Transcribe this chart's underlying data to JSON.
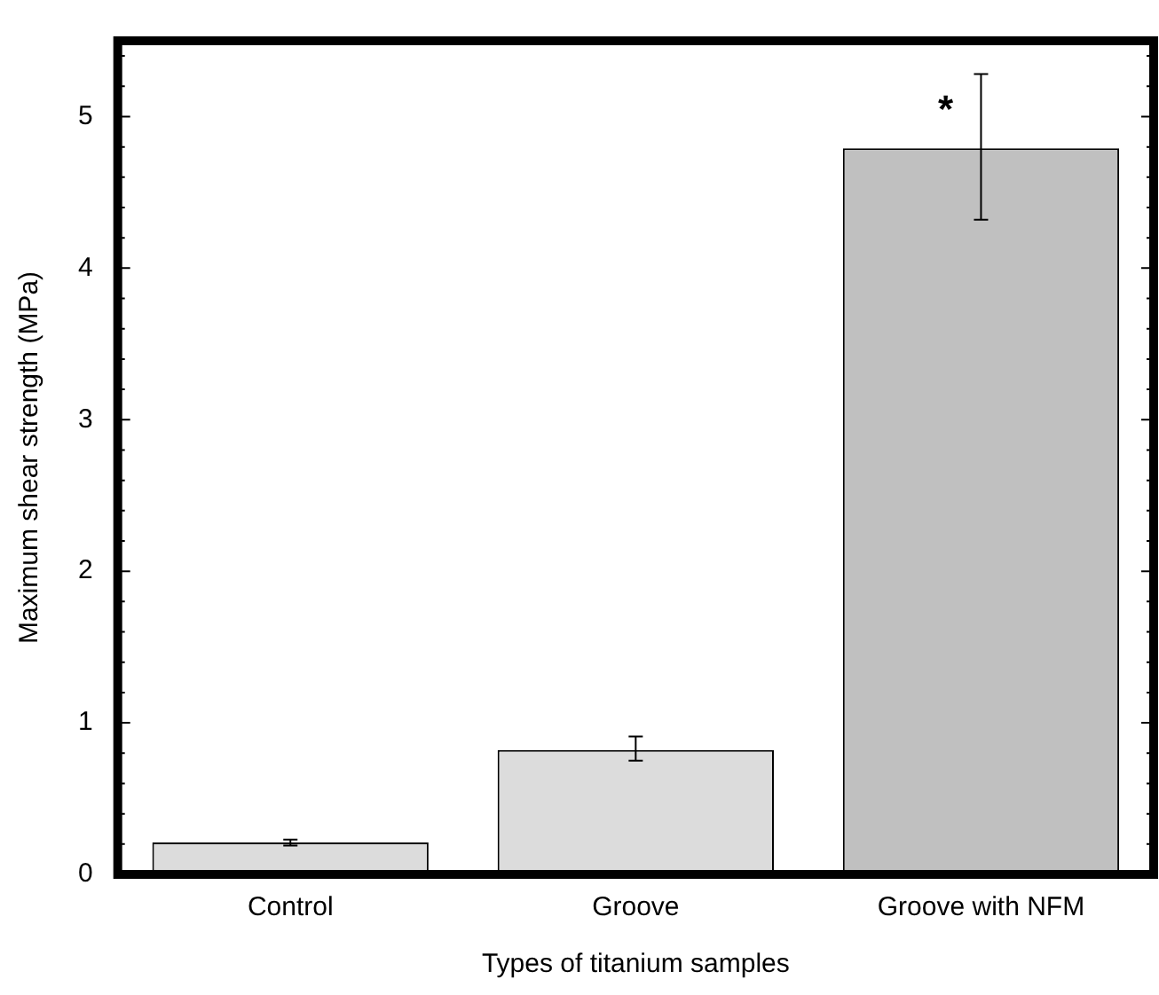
{
  "chart_data": {
    "type": "bar",
    "xlabel": "Types of titanium samples",
    "ylabel": "Maximum shear strength (MPa)",
    "categories": [
      "Control",
      "Groove",
      "Groove with NFM"
    ],
    "values": [
      0.21,
      0.82,
      4.79
    ],
    "colors": [
      "#dcdcdc",
      "#dcdcdc",
      "#c0c0c0"
    ],
    "errors": [
      0.02,
      [
        0.75,
        0.91
      ],
      [
        4.32,
        5.28
      ]
    ],
    "ylim": [
      0,
      5.5
    ],
    "yticks": [
      0,
      {
        "value": 0.2,
        "label": null
      },
      {
        "value": 0.4,
        "label": null
      },
      {
        "value": 0.6,
        "label": null
      },
      {
        "value": 0.8,
        "label": null
      },
      1,
      {
        "value": 1.2,
        "label": null
      },
      {
        "value": 1.4,
        "label": null
      },
      {
        "value": 1.6,
        "label": null
      },
      {
        "value": 1.8,
        "label": null
      },
      2,
      {
        "value": 2.2,
        "label": null
      },
      {
        "value": 2.4,
        "label": null
      },
      {
        "value": 2.6,
        "label": null
      },
      {
        "value": 2.8,
        "label": null
      },
      3,
      {
        "value": 3.2,
        "label": null
      },
      {
        "value": 3.4,
        "label": null
      },
      {
        "value": 3.6,
        "label": null
      },
      {
        "value": 3.8,
        "label": null
      },
      4,
      {
        "value": 4.2,
        "label": null
      },
      {
        "value": 4.4,
        "label": null
      },
      {
        "value": 4.6,
        "label": null
      },
      {
        "value": 4.8,
        "label": null
      },
      5,
      {
        "value": 5.2,
        "label": null
      },
      {
        "value": 5.4,
        "label": null
      }
    ],
    "grid": false,
    "annotations": [
      {
        "text": "*",
        "x": "Groove with NFM",
        "y": 5.1
      }
    ]
  }
}
